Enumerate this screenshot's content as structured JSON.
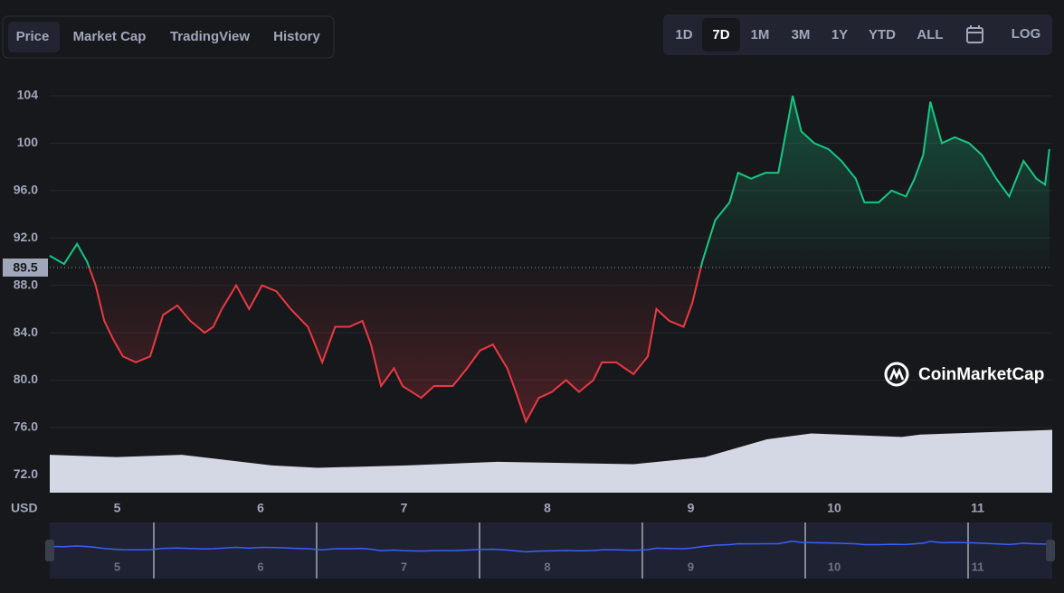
{
  "tabs": [
    "Price",
    "Market Cap",
    "TradingView",
    "History"
  ],
  "ranges": [
    "1D",
    "7D",
    "1M",
    "3M",
    "1Y",
    "YTD",
    "ALL"
  ],
  "log": "LOG",
  "brand": "CoinMarketCap",
  "chart_data": {
    "type": "line",
    "x": [
      4.53,
      4.63,
      4.72,
      4.79,
      4.85,
      4.91,
      4.97,
      5.04,
      5.13,
      5.23,
      5.32,
      5.42,
      5.51,
      5.61,
      5.67,
      5.73,
      5.83,
      5.92,
      6.01,
      6.11,
      6.21,
      6.33,
      6.43,
      6.52,
      6.62,
      6.71,
      6.77,
      6.84,
      6.93,
      6.99,
      7.12,
      7.21,
      7.34,
      7.44,
      7.53,
      7.62,
      7.72,
      7.78,
      7.85,
      7.94,
      8.03,
      8.13,
      8.22,
      8.32,
      8.38,
      8.48,
      8.6,
      8.7,
      8.76,
      8.85,
      8.95,
      9.01,
      9.08,
      9.17,
      9.27,
      9.33,
      9.42,
      9.52,
      9.61,
      9.68,
      9.71,
      9.77,
      9.86,
      9.96,
      10.05,
      10.15,
      10.21,
      10.31,
      10.4,
      10.5,
      10.56,
      10.62,
      10.67,
      10.75,
      10.84,
      10.94,
      11.03,
      11.13,
      11.22,
      11.32,
      11.41,
      11.47,
      11.5
    ],
    "values": [
      90.5,
      89.8,
      91.5,
      90,
      88,
      85,
      83.5,
      82,
      81.5,
      82,
      85.5,
      86.3,
      85,
      84,
      84.5,
      86,
      88,
      86,
      88,
      87.5,
      86,
      84.5,
      81.5,
      84.5,
      84.5,
      85,
      83,
      79.5,
      81,
      79.5,
      78.5,
      79.5,
      79.5,
      81,
      82.5,
      83,
      81,
      79,
      76.5,
      78.5,
      79,
      80,
      79,
      80,
      81.5,
      81.5,
      80.5,
      82,
      86,
      85,
      84.5,
      86.5,
      90,
      93.5,
      95,
      97.5,
      97,
      97.5,
      97.5,
      102,
      104,
      101,
      100,
      99.5,
      98.5,
      97,
      95,
      95,
      96,
      95.5,
      97,
      99,
      103.5,
      100,
      100.5,
      100,
      99,
      97,
      95.5,
      98.5,
      97,
      96.5,
      99.5
    ],
    "baseline": 89.5,
    "colors": {
      "up": "#16c784",
      "down": "#ea3943"
    },
    "volume": {
      "x": [
        4.53,
        5.0,
        5.45,
        6.08,
        6.4,
        7.02,
        7.65,
        8.6,
        9.1,
        9.53,
        9.84,
        10.47,
        10.6,
        11.52
      ],
      "values": [
        73.7,
        73.5,
        73.7,
        72.8,
        72.6,
        72.8,
        73.1,
        72.9,
        73.5,
        75.0,
        75.5,
        75.2,
        75.4,
        75.8
      ],
      "color": "#d3d8e4"
    },
    "xlim": [
      4.53,
      11.52
    ],
    "xticks": [
      5,
      6,
      7,
      8,
      9,
      10,
      11
    ],
    "ylim": [
      70.5,
      105.6
    ],
    "yticks": [
      {
        "value": 72,
        "label": "72.0"
      },
      {
        "value": 76,
        "label": "76.0"
      },
      {
        "value": 80,
        "label": "80.0"
      },
      {
        "value": 84,
        "label": "84.0"
      },
      {
        "value": 88,
        "label": "88.0"
      },
      {
        "value": 92,
        "label": "92.0"
      },
      {
        "value": 96,
        "label": "96.0"
      },
      100,
      104
    ],
    "y_label": "USD",
    "grid": true
  }
}
